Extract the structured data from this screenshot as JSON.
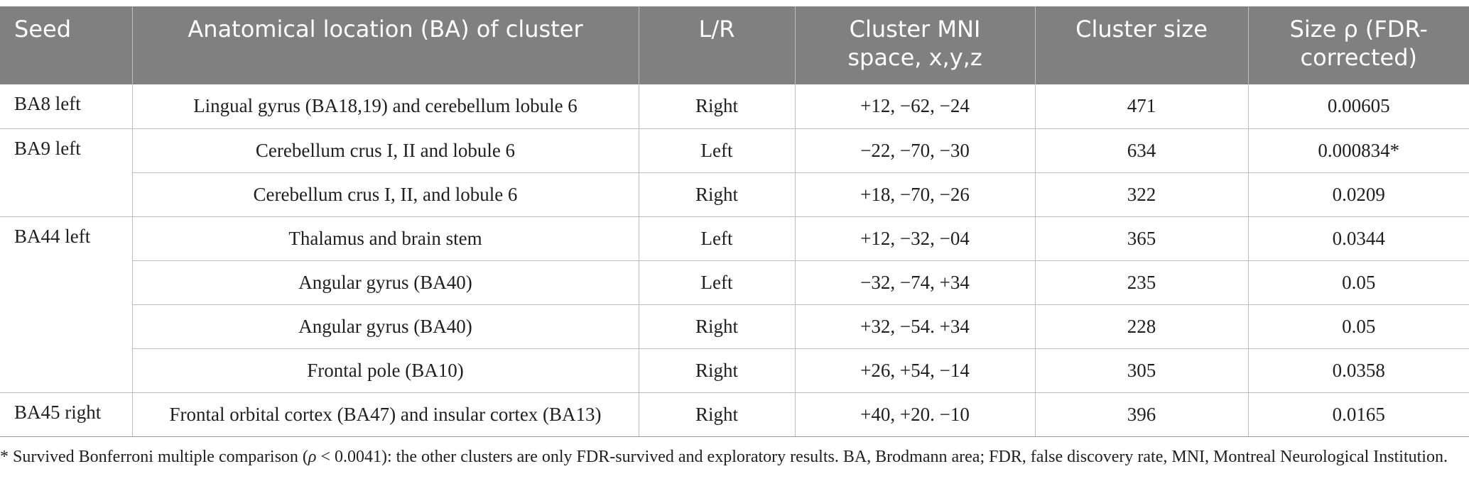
{
  "table": {
    "headers": [
      "Seed",
      "Anatomical location (BA) of cluster",
      "L/R",
      "Cluster MNI space, x,y,z",
      "Cluster size",
      "Size ρ (FDR-corrected)"
    ],
    "header_lines": {
      "mni_line1": "Cluster MNI",
      "mni_line2": "space, x,y,z",
      "size_rho_line1": "Size ρ (FDR-",
      "size_rho_line2": "corrected)"
    },
    "groups": [
      {
        "seed": "BA8 left",
        "rows": [
          {
            "location": "Lingual gyrus (BA18,19) and cerebellum lobule 6",
            "lr": "Right",
            "mni": "+12, −62, −24",
            "size": "471",
            "rho": "0.00605"
          }
        ]
      },
      {
        "seed": "BA9 left",
        "rows": [
          {
            "location": "Cerebellum crus I, II and lobule 6",
            "lr": "Left",
            "mni": "−22, −70, −30",
            "size": "634",
            "rho": "0.000834*"
          },
          {
            "location": "Cerebellum crus I, II, and lobule 6",
            "lr": "Right",
            "mni": "+18, −70, −26",
            "size": "322",
            "rho": "0.0209"
          }
        ]
      },
      {
        "seed": "BA44 left",
        "rows": [
          {
            "location": "Thalamus and brain stem",
            "lr": "Left",
            "mni": "+12, −32, −04",
            "size": "365",
            "rho": "0.0344"
          },
          {
            "location": "Angular gyrus (BA40)",
            "lr": "Left",
            "mni": "−32, −74, +34",
            "size": "235",
            "rho": "0.05"
          },
          {
            "location": "Angular gyrus (BA40)",
            "lr": "Right",
            "mni": "+32, −54. +34",
            "size": "228",
            "rho": "0.05"
          },
          {
            "location": "Frontal pole (BA10)",
            "lr": "Right",
            "mni": "+26, +54, −14",
            "size": "305",
            "rho": "0.0358"
          }
        ]
      },
      {
        "seed": "BA45 right",
        "rows": [
          {
            "location": "Frontal orbital cortex (BA47) and insular cortex (BA13)",
            "lr": "Right",
            "mni": "+40, +20. −10",
            "size": "396",
            "rho": "0.0165"
          }
        ]
      }
    ]
  },
  "footnote": {
    "part1": "* Survived Bonferroni multiple comparison (",
    "rho_symbol": "ρ",
    "part2": " < 0.0041): the other clusters are only FDR-survived and exploratory results. BA, Brodmann area; FDR, false discovery rate, MNI, Montreal Neurological Institution."
  }
}
